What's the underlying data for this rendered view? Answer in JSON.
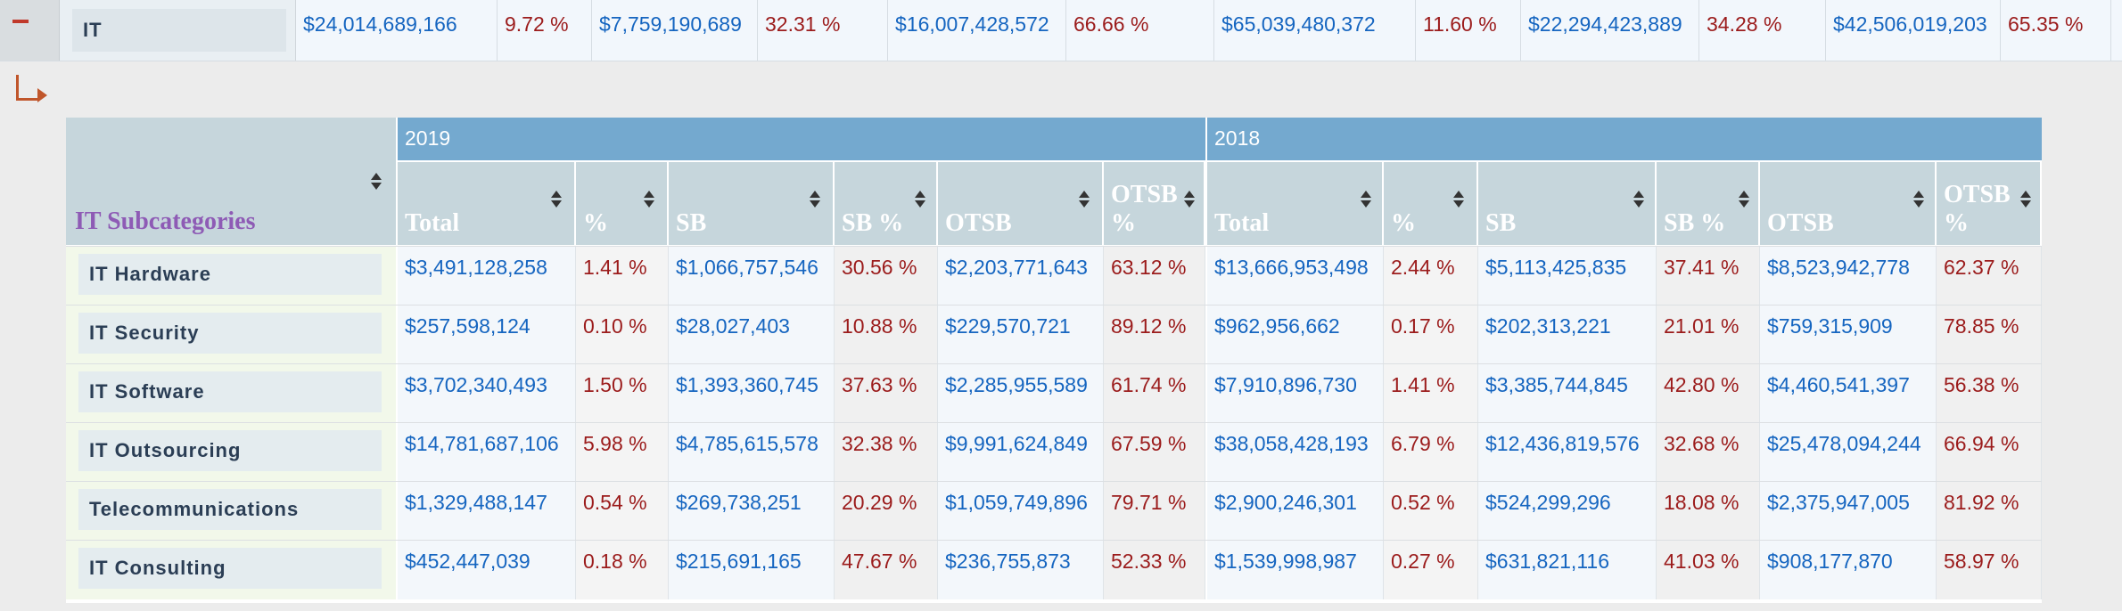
{
  "top_row": {
    "category": "IT",
    "values": [
      "$24,014,689,166",
      "9.72 %",
      "$7,759,190,689",
      "32.31 %",
      "$16,007,428,572",
      "66.66 %",
      "$65,039,480,372",
      "11.60 %",
      "$22,294,423,889",
      "34.28 %",
      "$42,506,019,203",
      "65.35 %"
    ]
  },
  "subtable": {
    "category_header": "IT Subcategories",
    "years": [
      "2019",
      "2018"
    ],
    "columns": [
      "Total",
      "%",
      "SB",
      "SB %",
      "OTSB",
      "OTSB %",
      "Total",
      "%",
      "SB",
      "SB %",
      "OTSB",
      "OTSB %"
    ],
    "rows": [
      {
        "category": "IT Hardware",
        "values": [
          "$3,491,128,258",
          "1.41 %",
          "$1,066,757,546",
          "30.56 %",
          "$2,203,771,643",
          "63.12 %",
          "$13,666,953,498",
          "2.44 %",
          "$5,113,425,835",
          "37.41 %",
          "$8,523,942,778",
          "62.37 %"
        ]
      },
      {
        "category": "IT Security",
        "values": [
          "$257,598,124",
          "0.10 %",
          "$28,027,403",
          "10.88 %",
          "$229,570,721",
          "89.12 %",
          "$962,956,662",
          "0.17 %",
          "$202,313,221",
          "21.01 %",
          "$759,315,909",
          "78.85 %"
        ]
      },
      {
        "category": "IT Software",
        "values": [
          "$3,702,340,493",
          "1.50 %",
          "$1,393,360,745",
          "37.63 %",
          "$2,285,955,589",
          "61.74 %",
          "$7,910,896,730",
          "1.41 %",
          "$3,385,744,845",
          "42.80 %",
          "$4,460,541,397",
          "56.38 %"
        ]
      },
      {
        "category": "IT Outsourcing",
        "values": [
          "$14,781,687,106",
          "5.98 %",
          "$4,785,615,578",
          "32.38 %",
          "$9,991,624,849",
          "67.59 %",
          "$38,058,428,193",
          "6.79 %",
          "$12,436,819,576",
          "32.68 %",
          "$25,478,094,244",
          "66.94 %"
        ]
      },
      {
        "category": "Telecommunications",
        "values": [
          "$1,329,488,147",
          "0.54 %",
          "$269,738,251",
          "20.29 %",
          "$1,059,749,896",
          "79.71 %",
          "$2,900,246,301",
          "0.52 %",
          "$524,299,296",
          "18.08 %",
          "$2,375,947,005",
          "81.92 %"
        ]
      },
      {
        "category": "IT Consulting",
        "values": [
          "$452,447,039",
          "0.18 %",
          "$215,691,165",
          "47.67 %",
          "$236,755,873",
          "52.33 %",
          "$1,539,998,987",
          "0.27 %",
          "$631,821,116",
          "41.03 %",
          "$908,177,870",
          "58.97 %"
        ]
      }
    ]
  },
  "colors": {
    "money": "#1565c0",
    "percent": "#9b1b1b",
    "year_header": "#74a9cf",
    "subcategory_title": "#8e5bb5"
  }
}
